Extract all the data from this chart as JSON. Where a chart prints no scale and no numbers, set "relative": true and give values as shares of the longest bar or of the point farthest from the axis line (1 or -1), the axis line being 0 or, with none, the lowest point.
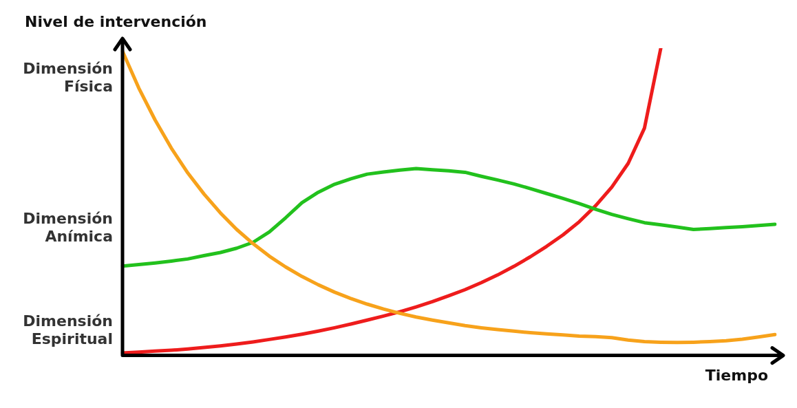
{
  "chart_data": {
    "type": "line",
    "xlabel": "Tiempo",
    "ylabel": "Nivel de intervención",
    "relative": true,
    "annotations": [
      "Dimensión Física",
      "Dimensión Anímica",
      "Dimensión Espiritual"
    ],
    "categories": [
      null,
      null,
      null,
      null,
      null,
      null,
      null,
      null,
      null,
      null,
      null,
      null,
      null,
      null,
      null,
      null,
      null,
      null,
      null,
      null,
      null,
      null,
      null,
      null,
      null,
      null,
      null,
      null,
      null,
      null,
      null,
      null,
      null,
      null,
      null,
      null,
      null,
      null,
      null,
      null,
      null
    ],
    "grid": false,
    "legend": false,
    "marker": "none",
    "line_style": "solid",
    "series": [
      {
        "color": "#f7a21b",
        "values": [
          0.99,
          0.87,
          0.766,
          0.674,
          0.594,
          0.525,
          0.464,
          0.41,
          0.364,
          0.323,
          0.288,
          0.257,
          0.23,
          0.206,
          0.185,
          0.167,
          0.151,
          0.137,
          0.125,
          0.115,
          0.106,
          0.097,
          0.09,
          0.084,
          0.079,
          0.074,
          0.07,
          0.067,
          0.063,
          0.061,
          0.058,
          0.05,
          0.045,
          0.043,
          0.042,
          0.043,
          0.045,
          0.048,
          0.053,
          0.06,
          0.068
        ]
      },
      {
        "color": "#22c11d",
        "values": [
          0.291,
          0.296,
          0.301,
          0.307,
          0.314,
          0.325,
          0.335,
          0.349,
          0.368,
          0.402,
          0.448,
          0.497,
          0.531,
          0.557,
          0.575,
          0.59,
          0.597,
          0.603,
          0.608,
          0.604,
          0.601,
          0.596,
          0.583,
          0.571,
          0.558,
          0.543,
          0.527,
          0.511,
          0.494,
          0.476,
          0.459,
          0.445,
          0.432,
          0.425,
          0.418,
          0.41,
          0.413,
          0.416,
          0.419,
          0.423,
          0.427
        ]
      },
      {
        "color": "#ee1c1c",
        "values": [
          0.008,
          0.011,
          0.014,
          0.017,
          0.021,
          0.026,
          0.031,
          0.037,
          0.044,
          0.052,
          0.06,
          0.069,
          0.079,
          0.09,
          0.102,
          0.115,
          0.128,
          0.142,
          0.158,
          0.175,
          0.194,
          0.214,
          0.237,
          0.262,
          0.29,
          0.321,
          0.355,
          0.392,
          0.435,
          0.487,
          0.548,
          0.625,
          0.74,
          1.0,
          null,
          null,
          null,
          null,
          null,
          null,
          null
        ]
      }
    ]
  }
}
